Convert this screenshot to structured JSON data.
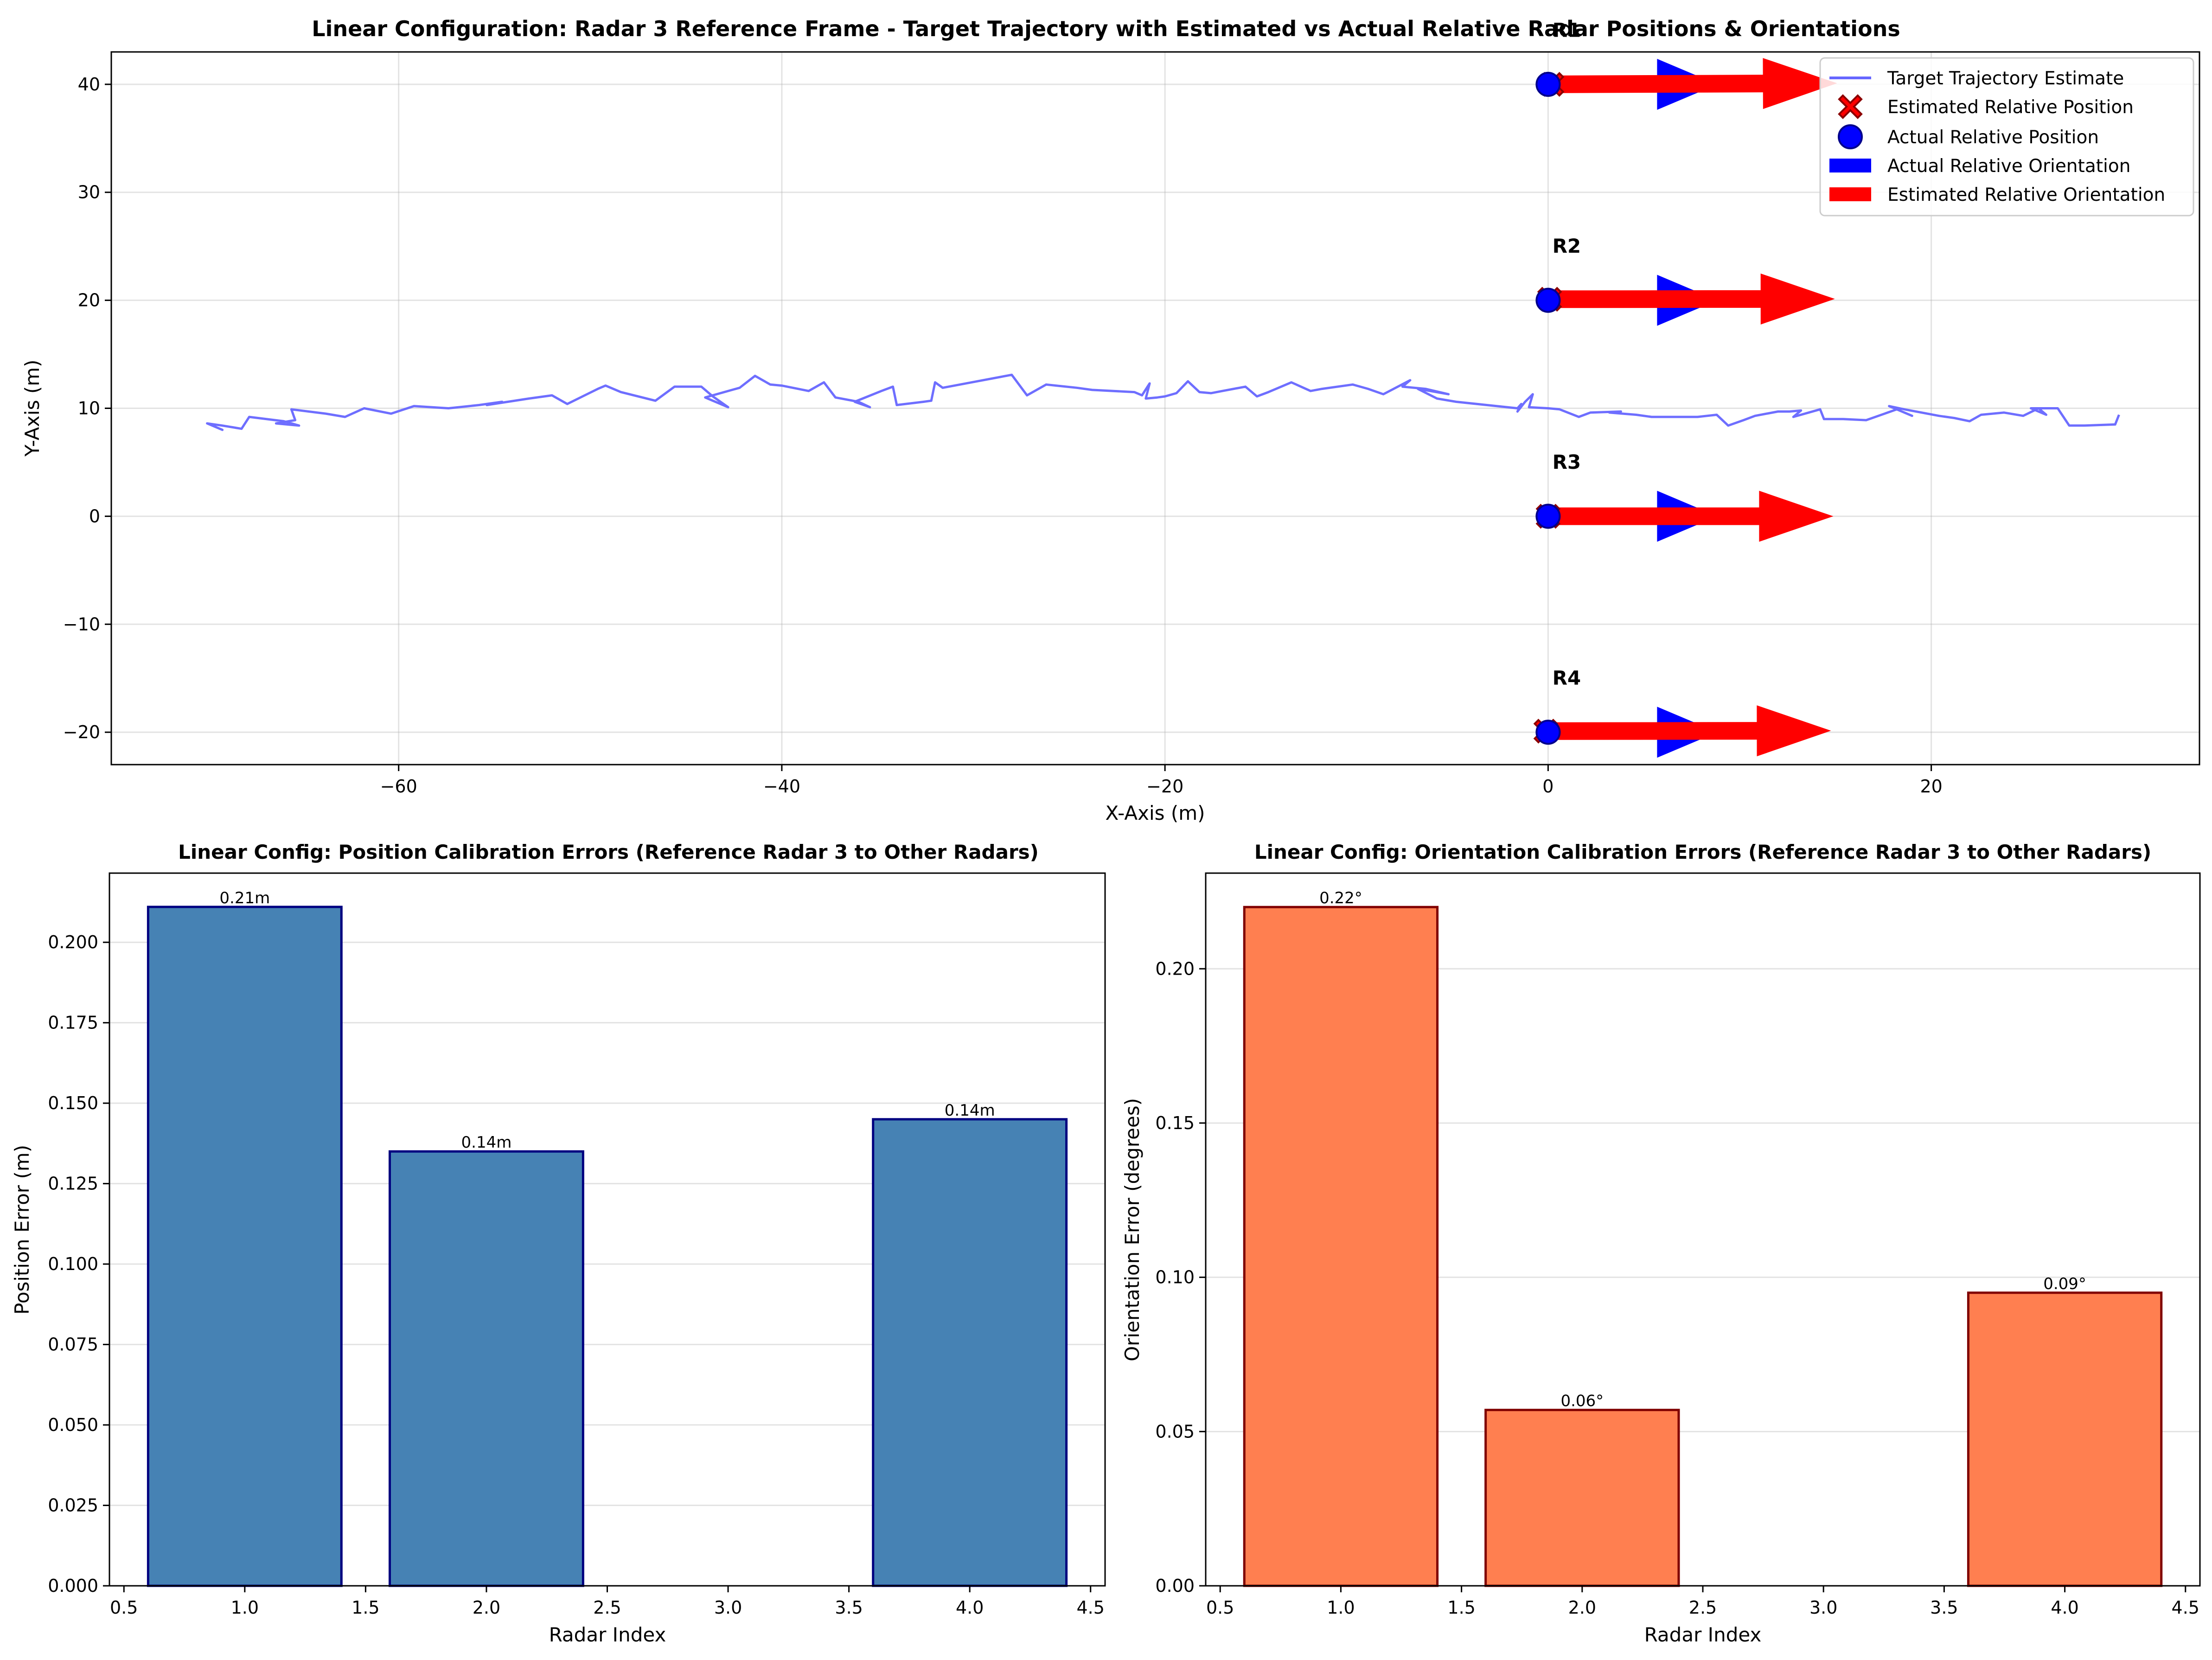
{
  "chart_data": [
    {
      "type": "line",
      "title": "Linear Configuration: Radar 3 Reference Frame - Target Trajectory with Estimated vs Actual Relative Radar Positions & Orientations",
      "xlabel": "X-Axis (m)",
      "ylabel": "Y-Axis (m)",
      "xlim": [
        -75,
        34
      ],
      "ylim": [
        -23,
        43
      ],
      "xticks": [
        -60,
        -40,
        -20,
        0,
        20
      ],
      "xtick_labels": [
        "−60",
        "−40",
        "−20",
        "0",
        "20"
      ],
      "yticks": [
        -20,
        -10,
        0,
        10,
        20,
        30,
        40
      ],
      "ytick_labels": [
        "−20",
        "−10",
        "0",
        "10",
        "20",
        "30",
        "40"
      ],
      "grid": true,
      "legend_position": "top-right",
      "legend": [
        {
          "label": "Target Trajectory Estimate",
          "kind": "line",
          "color": "#6666ff"
        },
        {
          "label": "Estimated Relative Position",
          "kind": "x-marker",
          "color": "#ff0000"
        },
        {
          "label": "Actual Relative Position",
          "kind": "circle-marker",
          "color": "#0000ff"
        },
        {
          "label": "Actual Relative Orientation",
          "kind": "patch",
          "color": "#0000ff"
        },
        {
          "label": "Estimated Relative Orientation",
          "kind": "patch",
          "color": "#ff0000"
        }
      ],
      "trajectory": {
        "name": "Target Trajectory Estimate",
        "color": "#6666ff",
        "points": [
          [
            -70.0,
            8.6
          ],
          [
            -69.2,
            8.0
          ],
          [
            -70.0,
            8.6
          ],
          [
            -69.2,
            8.4
          ],
          [
            -68.2,
            8.1
          ],
          [
            -67.8,
            9.2
          ],
          [
            -66.0,
            8.8
          ],
          [
            -65.2,
            8.4
          ],
          [
            -66.4,
            8.6
          ],
          [
            -65.4,
            8.9
          ],
          [
            -65.6,
            9.9
          ],
          [
            -63.8,
            9.5
          ],
          [
            -62.8,
            9.2
          ],
          [
            -61.8,
            10.0
          ],
          [
            -60.4,
            9.5
          ],
          [
            -59.2,
            10.2
          ],
          [
            -57.4,
            10.0
          ],
          [
            -55.8,
            10.3
          ],
          [
            -54.6,
            10.6
          ],
          [
            -55.4,
            10.3
          ],
          [
            -53.2,
            10.9
          ],
          [
            -52.0,
            11.2
          ],
          [
            -51.2,
            10.4
          ],
          [
            -49.6,
            11.8
          ],
          [
            -49.2,
            12.1
          ],
          [
            -48.4,
            11.5
          ],
          [
            -46.6,
            10.7
          ],
          [
            -45.6,
            12.0
          ],
          [
            -44.2,
            12.0
          ],
          [
            -43.6,
            11.1
          ],
          [
            -42.8,
            10.1
          ],
          [
            -44.0,
            11.0
          ],
          [
            -42.6,
            11.7
          ],
          [
            -42.2,
            11.9
          ],
          [
            -41.4,
            13.0
          ],
          [
            -40.6,
            12.2
          ],
          [
            -40.0,
            12.1
          ],
          [
            -38.6,
            11.6
          ],
          [
            -37.8,
            12.4
          ],
          [
            -37.2,
            11.0
          ],
          [
            -36.0,
            10.6
          ],
          [
            -35.4,
            10.1
          ],
          [
            -36.2,
            10.6
          ],
          [
            -34.8,
            11.6
          ],
          [
            -34.2,
            12.0
          ],
          [
            -34.0,
            10.3
          ],
          [
            -32.6,
            10.6
          ],
          [
            -32.2,
            10.7
          ],
          [
            -32.0,
            12.4
          ],
          [
            -31.6,
            11.9
          ],
          [
            -29.8,
            12.5
          ],
          [
            -28.6,
            12.9
          ],
          [
            -28.0,
            13.1
          ],
          [
            -27.2,
            11.2
          ],
          [
            -26.2,
            12.2
          ],
          [
            -24.6,
            11.9
          ],
          [
            -23.8,
            11.7
          ],
          [
            -21.6,
            11.5
          ],
          [
            -21.2,
            11.2
          ],
          [
            -20.8,
            12.3
          ],
          [
            -21.0,
            10.9
          ],
          [
            -20.4,
            11.0
          ],
          [
            -20.0,
            11.1
          ],
          [
            -19.4,
            11.4
          ],
          [
            -18.8,
            12.5
          ],
          [
            -18.2,
            11.5
          ],
          [
            -17.6,
            11.4
          ],
          [
            -17.0,
            11.6
          ],
          [
            -15.8,
            12.0
          ],
          [
            -15.2,
            11.1
          ],
          [
            -14.6,
            11.5
          ],
          [
            -13.4,
            12.4
          ],
          [
            -12.4,
            11.6
          ],
          [
            -11.8,
            11.8
          ],
          [
            -10.2,
            12.2
          ],
          [
            -9.4,
            11.8
          ],
          [
            -8.6,
            11.3
          ],
          [
            -7.2,
            12.6
          ],
          [
            -7.6,
            12.0
          ],
          [
            -6.4,
            11.8
          ],
          [
            -5.2,
            11.3
          ],
          [
            -6.8,
            11.8
          ],
          [
            -5.8,
            10.9
          ],
          [
            -4.8,
            10.6
          ],
          [
            -3.2,
            10.3
          ],
          [
            -1.6,
            10.0
          ],
          [
            -1.4,
            10.4
          ],
          [
            -1.6,
            9.7
          ],
          [
            -1.2,
            10.6
          ],
          [
            -0.8,
            11.3
          ],
          [
            -1.0,
            10.1
          ],
          [
            0.0,
            10.0
          ],
          [
            0.6,
            9.9
          ],
          [
            1.6,
            9.2
          ],
          [
            2.2,
            9.6
          ],
          [
            3.8,
            9.7
          ],
          [
            3.2,
            9.6
          ],
          [
            4.6,
            9.4
          ],
          [
            5.4,
            9.2
          ],
          [
            6.6,
            9.2
          ],
          [
            7.8,
            9.2
          ],
          [
            8.8,
            9.4
          ],
          [
            9.4,
            8.4
          ],
          [
            10.2,
            8.9
          ],
          [
            10.8,
            9.3
          ],
          [
            12.0,
            9.7
          ],
          [
            12.6,
            9.7
          ],
          [
            13.2,
            9.8
          ],
          [
            12.8,
            9.2
          ],
          [
            13.6,
            9.6
          ],
          [
            14.2,
            9.9
          ],
          [
            14.4,
            9.0
          ],
          [
            15.4,
            9.0
          ],
          [
            16.6,
            8.9
          ],
          [
            18.2,
            9.9
          ],
          [
            19.0,
            9.3
          ],
          [
            17.8,
            10.2
          ],
          [
            18.6,
            9.9
          ],
          [
            20.4,
            9.3
          ],
          [
            21.2,
            9.1
          ],
          [
            22.0,
            8.8
          ],
          [
            22.6,
            9.4
          ],
          [
            23.8,
            9.6
          ],
          [
            24.8,
            9.3
          ],
          [
            25.6,
            10.0
          ],
          [
            26.0,
            9.4
          ],
          [
            25.2,
            10.0
          ],
          [
            26.6,
            10.0
          ],
          [
            27.2,
            8.4
          ],
          [
            28.0,
            8.4
          ],
          [
            29.6,
            8.5
          ],
          [
            29.8,
            9.4
          ]
        ]
      },
      "radars": [
        {
          "label": "R1",
          "actual": [
            0,
            40
          ],
          "estimated": [
            0.2,
            40.0
          ],
          "actual_orientation_deg": 0,
          "estimated_orientation_deg": 0.22
        },
        {
          "label": "R2",
          "actual": [
            0,
            20
          ],
          "estimated": [
            0.08,
            20.1
          ],
          "actual_orientation_deg": 0,
          "estimated_orientation_deg": 0.06
        },
        {
          "label": "R3",
          "actual": [
            0,
            0
          ],
          "estimated": [
            0,
            0
          ],
          "actual_orientation_deg": 0,
          "estimated_orientation_deg": 0
        },
        {
          "label": "R4",
          "actual": [
            0,
            -20
          ],
          "estimated": [
            -0.12,
            -19.9
          ],
          "actual_orientation_deg": 0,
          "estimated_orientation_deg": 0.09
        }
      ],
      "colors": {
        "estimated_position": "#ff0000",
        "estimated_position_edge": "#8b0000",
        "actual_position": "#0000ff",
        "actual_position_edge": "#00008b",
        "actual_orientation": "#0000ff",
        "estimated_orientation": "#ff0000"
      }
    },
    {
      "type": "bar",
      "title": "Linear Config: Position Calibration Errors (Reference Radar 3 to Other Radars)",
      "xlabel": "Radar Index",
      "ylabel": "Position Error (m)",
      "x": [
        1,
        2,
        4
      ],
      "values": [
        0.211,
        0.135,
        0.145
      ],
      "data_labels": [
        "0.21m",
        "0.14m",
        "0.14m"
      ],
      "bar_width": 0.8,
      "xlim": [
        0.44,
        4.56
      ],
      "ylim": [
        0,
        0.2215
      ],
      "xticks": [
        0.5,
        1.0,
        1.5,
        2.0,
        2.5,
        3.0,
        3.5,
        4.0,
        4.5
      ],
      "xtick_labels": [
        "0.5",
        "1.0",
        "1.5",
        "2.0",
        "2.5",
        "3.0",
        "3.5",
        "4.0",
        "4.5"
      ],
      "yticks": [
        0,
        0.025,
        0.05,
        0.075,
        0.1,
        0.125,
        0.15,
        0.175,
        0.2
      ],
      "ytick_labels": [
        "0.000",
        "0.025",
        "0.050",
        "0.075",
        "0.100",
        "0.125",
        "0.150",
        "0.175",
        "0.200"
      ],
      "grid": true,
      "color": "#4682b4",
      "edge_color": "#000080"
    },
    {
      "type": "bar",
      "title": "Linear Config: Orientation Calibration Errors (Reference Radar 3 to Other Radars)",
      "xlabel": "Radar Index",
      "ylabel": "Orientation Error (degrees)",
      "x": [
        1,
        2,
        4
      ],
      "values": [
        0.22,
        0.057,
        0.095
      ],
      "data_labels": [
        "0.22°",
        "0.06°",
        "0.09°"
      ],
      "bar_width": 0.8,
      "xlim": [
        0.44,
        4.56
      ],
      "ylim": [
        0,
        0.231
      ],
      "xticks": [
        0.5,
        1.0,
        1.5,
        2.0,
        2.5,
        3.0,
        3.5,
        4.0,
        4.5
      ],
      "xtick_labels": [
        "0.5",
        "1.0",
        "1.5",
        "2.0",
        "2.5",
        "3.0",
        "3.5",
        "4.0",
        "4.5"
      ],
      "yticks": [
        0,
        0.05,
        0.1,
        0.15,
        0.2
      ],
      "ytick_labels": [
        "0.00",
        "0.05",
        "0.10",
        "0.15",
        "0.20"
      ],
      "grid": true,
      "color": "#ff7f50",
      "edge_color": "#800000"
    }
  ]
}
